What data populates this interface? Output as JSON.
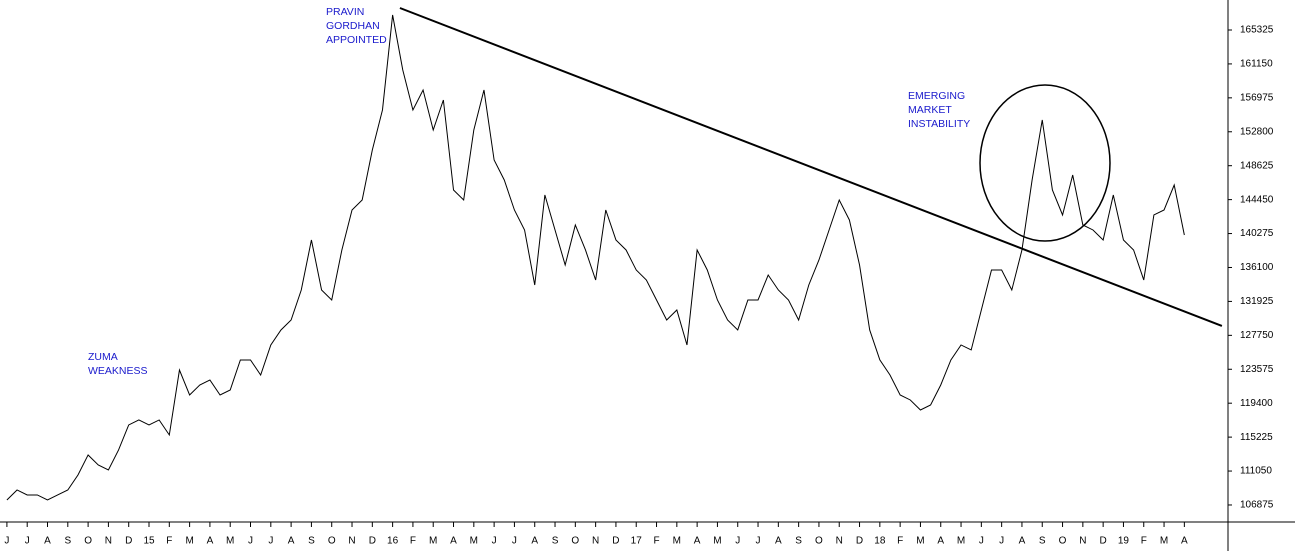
{
  "chart_data": {
    "type": "line",
    "x": [
      0,
      0.5,
      1,
      1.5,
      2,
      2.5,
      3,
      3.5,
      4,
      4.5,
      5,
      5.5,
      6,
      6.5,
      7,
      7.5,
      8,
      8.5,
      9,
      9.5,
      10,
      10.5,
      11,
      11.5,
      12,
      12.5,
      13,
      13.5,
      14,
      14.5,
      15,
      15.5,
      16,
      16.5,
      17,
      17.5,
      18,
      18.5,
      19,
      19.5,
      20,
      20.5,
      21,
      21.5,
      22,
      22.5,
      23,
      23.5,
      24,
      24.5,
      25,
      25.5,
      26,
      26.5,
      27,
      27.5,
      28,
      28.5,
      29,
      29.5,
      30,
      30.5,
      31,
      31.5,
      32,
      32.5,
      33,
      33.5,
      34,
      34.5,
      35,
      35.5,
      36,
      36.5,
      37,
      37.5,
      38,
      38.5,
      39,
      39.5,
      40,
      40.5,
      41,
      41.5,
      42,
      42.5,
      43,
      43.5,
      44,
      44.5,
      45,
      45.5,
      46,
      46.5,
      47,
      47.5,
      48,
      48.5,
      49,
      49.5,
      50,
      50.5,
      51,
      51.5,
      52,
      52.5,
      53,
      53.5,
      54,
      54.5,
      55,
      55.5,
      56,
      56.5,
      57,
      57.5,
      58
    ],
    "series": [
      {
        "color": "#000000",
        "values": [
          107490,
          108720,
          108105,
          108105,
          107490,
          108105,
          108720,
          110565,
          113030,
          111800,
          111180,
          113645,
          116720,
          117335,
          116720,
          117335,
          115490,
          123485,
          120410,
          121640,
          122255,
          120410,
          121025,
          124720,
          124720,
          122870,
          126565,
          128410,
          129640,
          133330,
          139485,
          133330,
          132100,
          138255,
          143175,
          144405,
          150560,
          155480,
          167170,
          160400,
          155480,
          157940,
          153020,
          156710,
          145635,
          144405,
          153020,
          157940,
          149325,
          146865,
          143175,
          140715,
          133945,
          145020,
          140715,
          136405,
          141330,
          138255,
          134560,
          143175,
          139485,
          138255,
          135790,
          134560,
          132100,
          129640,
          130870,
          126565,
          138255,
          135790,
          132100,
          129640,
          128410,
          132100,
          132100,
          135175,
          133330,
          132100,
          129640,
          133945,
          137020,
          140715,
          144405,
          141945,
          136405,
          128410,
          124720,
          122870,
          120410,
          119795,
          118565,
          119180,
          121640,
          124720,
          126565,
          125950,
          130870,
          135790,
          135790,
          133330,
          138255,
          146865,
          154250,
          145635,
          142560,
          147480,
          141330,
          140715,
          139485,
          145020,
          139485,
          138255,
          134560,
          142560,
          143175,
          146250,
          140100
        ]
      }
    ],
    "trendline": {
      "x": [
        19.36,
        59.85
      ],
      "y": [
        168030,
        128900
      ]
    },
    "xlim": [
      -0.34,
      60.15
    ],
    "ylim": [
      104780,
      169015
    ],
    "yticks": [
      106875,
      111050,
      115225,
      119400,
      123575,
      127750,
      131925,
      136100,
      140275,
      144450,
      148625,
      152800,
      156975,
      161150,
      165325
    ],
    "xticks": [
      {
        "value": 0,
        "label": "J"
      },
      {
        "value": 1,
        "label": "J"
      },
      {
        "value": 2,
        "label": "A"
      },
      {
        "value": 3,
        "label": "S"
      },
      {
        "value": 4,
        "label": "O"
      },
      {
        "value": 5,
        "label": "N"
      },
      {
        "value": 6,
        "label": "D"
      },
      {
        "value": 7,
        "label": "15"
      },
      {
        "value": 8,
        "label": "F"
      },
      {
        "value": 9,
        "label": "M"
      },
      {
        "value": 10,
        "label": "A"
      },
      {
        "value": 11,
        "label": "M"
      },
      {
        "value": 12,
        "label": "J"
      },
      {
        "value": 13,
        "label": "J"
      },
      {
        "value": 14,
        "label": "A"
      },
      {
        "value": 15,
        "label": "S"
      },
      {
        "value": 16,
        "label": "O"
      },
      {
        "value": 17,
        "label": "N"
      },
      {
        "value": 18,
        "label": "D"
      },
      {
        "value": 19,
        "label": "16"
      },
      {
        "value": 20,
        "label": "F"
      },
      {
        "value": 21,
        "label": "M"
      },
      {
        "value": 22,
        "label": "A"
      },
      {
        "value": 23,
        "label": "M"
      },
      {
        "value": 24,
        "label": "J"
      },
      {
        "value": 25,
        "label": "J"
      },
      {
        "value": 26,
        "label": "A"
      },
      {
        "value": 27,
        "label": "S"
      },
      {
        "value": 28,
        "label": "O"
      },
      {
        "value": 29,
        "label": "N"
      },
      {
        "value": 30,
        "label": "D"
      },
      {
        "value": 31,
        "label": "17"
      },
      {
        "value": 32,
        "label": "F"
      },
      {
        "value": 33,
        "label": "M"
      },
      {
        "value": 34,
        "label": "A"
      },
      {
        "value": 35,
        "label": "M"
      },
      {
        "value": 36,
        "label": "J"
      },
      {
        "value": 37,
        "label": "J"
      },
      {
        "value": 38,
        "label": "A"
      },
      {
        "value": 39,
        "label": "S"
      },
      {
        "value": 40,
        "label": "O"
      },
      {
        "value": 41,
        "label": "N"
      },
      {
        "value": 42,
        "label": "D"
      },
      {
        "value": 43,
        "label": "18"
      },
      {
        "value": 44,
        "label": "F"
      },
      {
        "value": 45,
        "label": "M"
      },
      {
        "value": 46,
        "label": "A"
      },
      {
        "value": 47,
        "label": "M"
      },
      {
        "value": 48,
        "label": "J"
      },
      {
        "value": 49,
        "label": "J"
      },
      {
        "value": 50,
        "label": "A"
      },
      {
        "value": 51,
        "label": "S"
      },
      {
        "value": 52,
        "label": "O"
      },
      {
        "value": 53,
        "label": "N"
      },
      {
        "value": 54,
        "label": "D"
      },
      {
        "value": 55,
        "label": "19"
      },
      {
        "value": 56,
        "label": "F"
      },
      {
        "value": 57,
        "label": "M"
      },
      {
        "value": 58,
        "label": "A"
      }
    ],
    "annotations": [
      [
        "ZUMA",
        "WEAKNESS"
      ],
      [
        "PRAVIN",
        "GORDHAN",
        "APPOINTED"
      ],
      [
        "EMERGING",
        "MARKET",
        "INSTABILITY"
      ]
    ]
  }
}
